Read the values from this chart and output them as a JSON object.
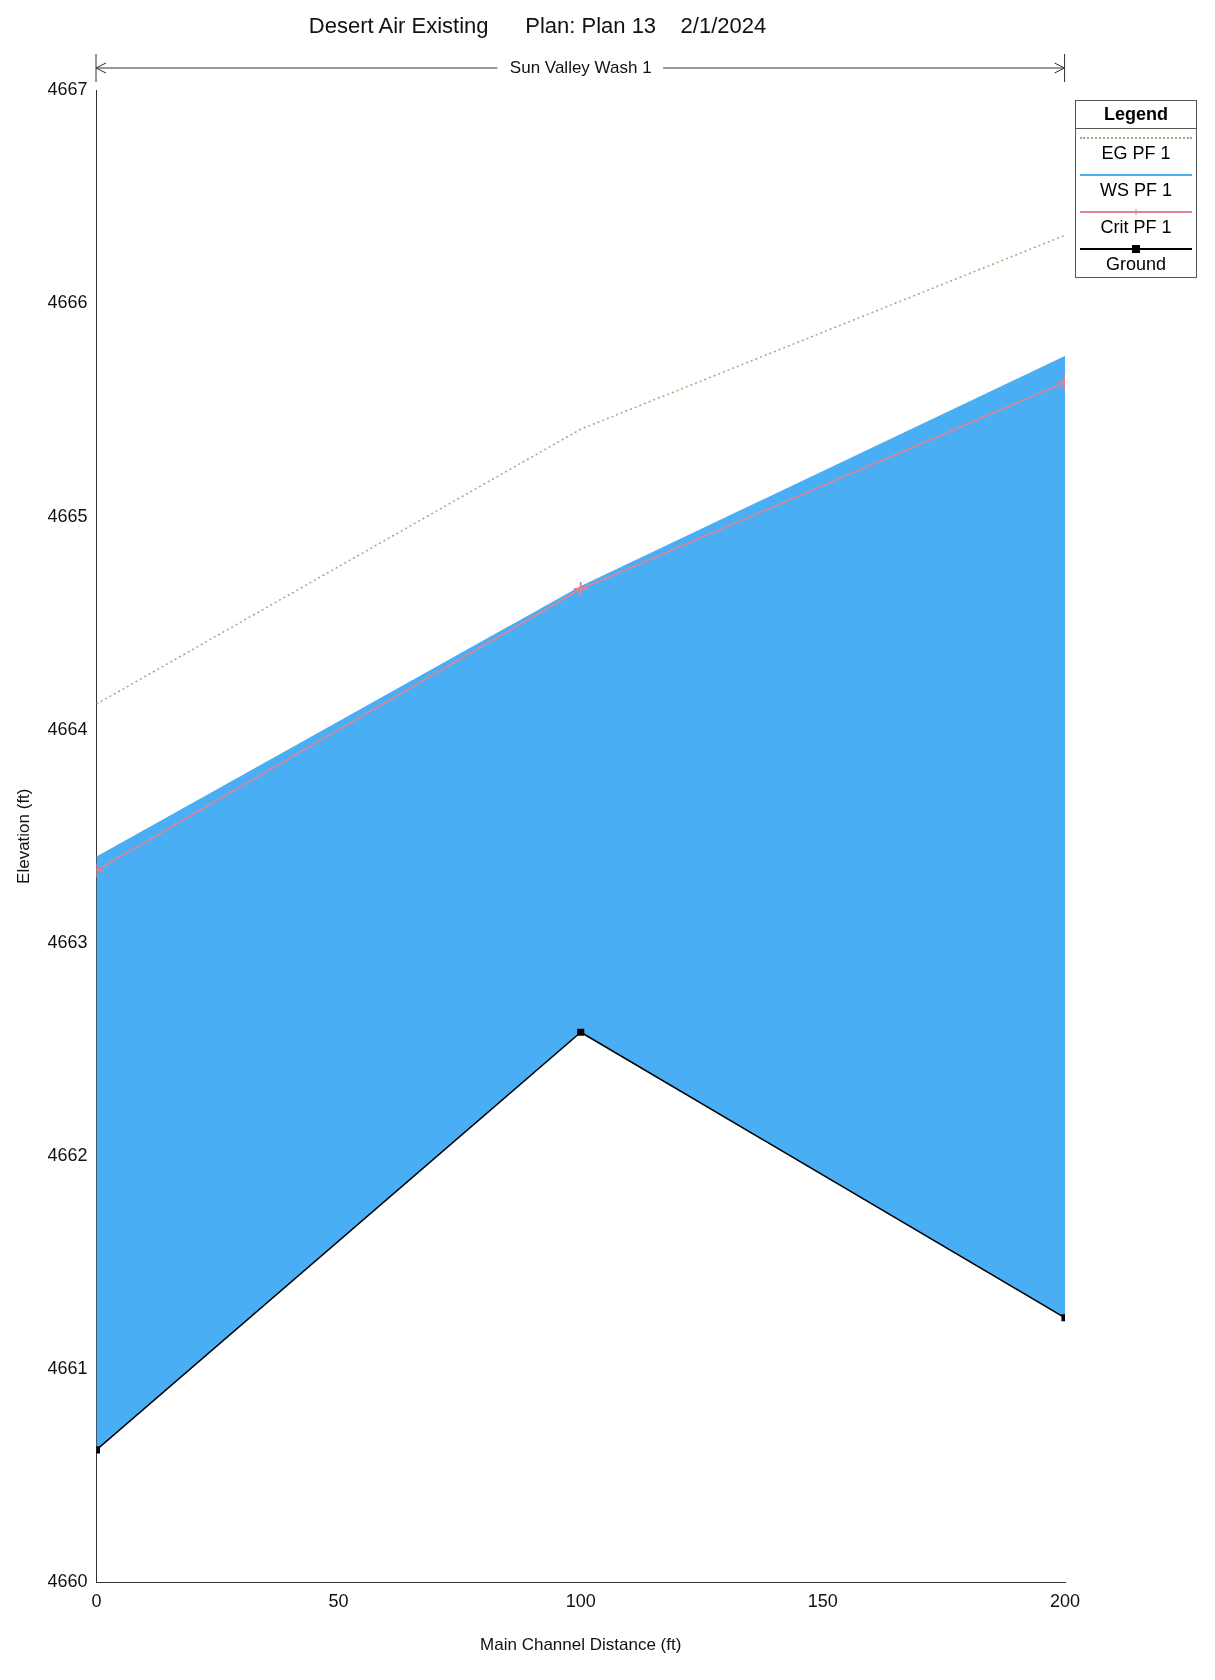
{
  "chart_data": {
    "type": "line",
    "title": "Desert Air Existing      Plan: Plan 13    2/1/2024",
    "xlabel": "Main Channel Distance (ft)",
    "ylabel": "Elevation (ft)",
    "x": [
      0,
      100,
      200
    ],
    "xlim": [
      0,
      200
    ],
    "xticks": [
      0,
      50,
      100,
      150,
      200
    ],
    "ylim": [
      4660,
      4667
    ],
    "yticks": [
      4660,
      4661,
      4662,
      4663,
      4664,
      4665,
      4666,
      4667
    ],
    "legend": "top right",
    "legend_title": "Legend",
    "annotations": [
      "Sun Valley Wash 1"
    ],
    "series": [
      {
        "name": "EG  PF 1",
        "type": "line",
        "color": "#8fb27c",
        "line_style": "dotted",
        "marker": "none",
        "values": [
          4664.12,
          4665.41,
          4666.32
        ]
      },
      {
        "name": "WS  PF 1",
        "type": "area",
        "color": "#4aaef5",
        "line_style": "solid",
        "marker": "none",
        "values": [
          4663.4,
          4664.67,
          4665.75
        ]
      },
      {
        "name": "Crit  PF 1",
        "type": "line",
        "color": "#e8808f",
        "line_style": "solid",
        "marker": "cross",
        "values": [
          4663.34,
          4664.66,
          4665.63
        ]
      },
      {
        "name": "Ground",
        "type": "line",
        "color": "#000000",
        "line_style": "solid",
        "marker": "square",
        "values": [
          4660.62,
          4662.58,
          4661.24
        ]
      }
    ]
  }
}
